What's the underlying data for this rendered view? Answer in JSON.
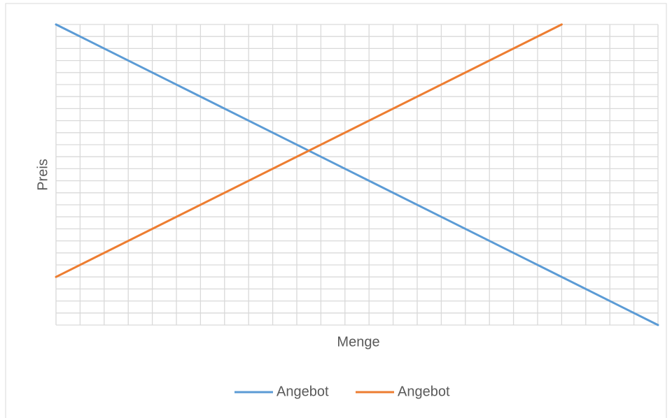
{
  "chart_data": {
    "type": "line",
    "x_label": "Menge",
    "y_label": "Preis",
    "xlim": [
      0,
      25
    ],
    "ylim": [
      0,
      25
    ],
    "xticks": [
      0,
      1,
      2,
      3,
      4,
      5,
      6,
      7,
      8,
      9,
      10,
      11,
      12,
      13,
      14,
      15,
      16,
      17,
      18,
      19,
      20,
      21,
      22,
      23,
      24,
      25
    ],
    "yticks": [
      0,
      1,
      2,
      3,
      4,
      5,
      6,
      7,
      8,
      9,
      10,
      11,
      12,
      13,
      14,
      15,
      16,
      17,
      18,
      19,
      20,
      21,
      22,
      23,
      24,
      25
    ],
    "grid": true,
    "legend": "bottom",
    "series": [
      {
        "name": "Angebot",
        "color": "#5b9bd5",
        "x": [
          0,
          25
        ],
        "values": [
          25,
          0
        ]
      },
      {
        "name": "Angebot",
        "color": "#ed7d31",
        "x": [
          0,
          21
        ],
        "values": [
          4,
          25
        ]
      }
    ]
  }
}
